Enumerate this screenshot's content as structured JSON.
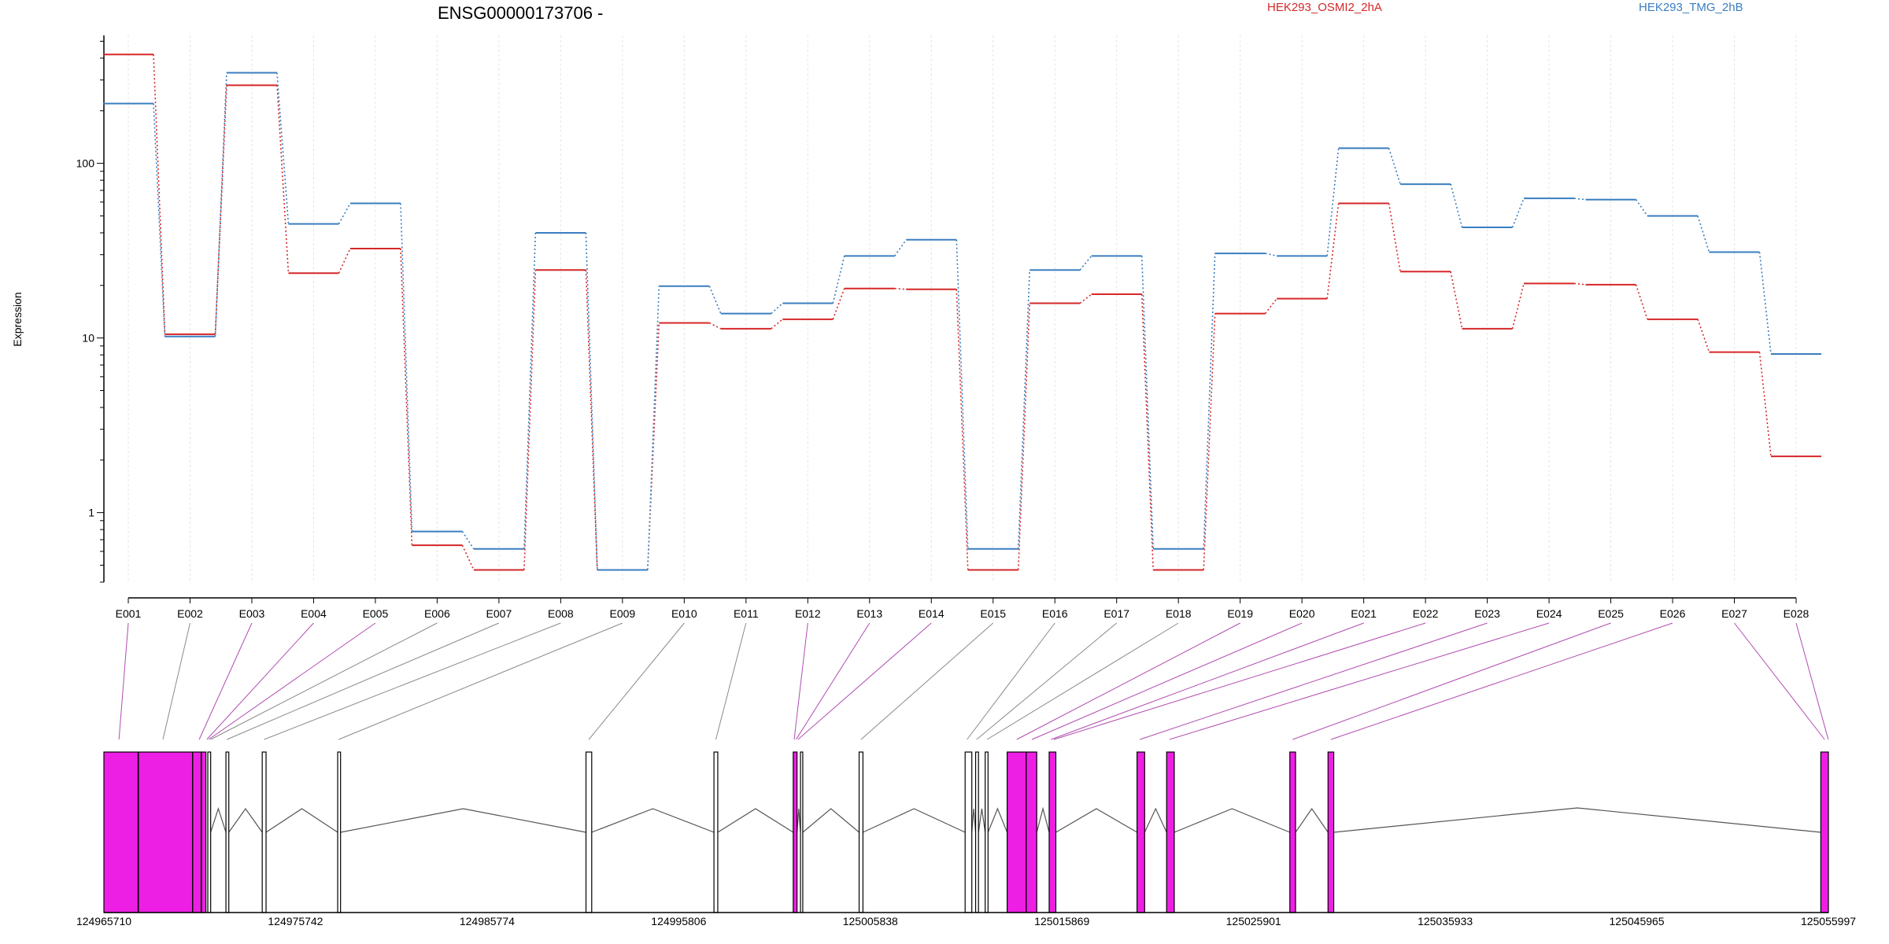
{
  "chart_data": {
    "type": "line",
    "title": "ENSG00000173706 -",
    "ylabel": "Expression",
    "yscale": "log",
    "ylim": [
      0.4,
      540
    ],
    "yticks": [
      1,
      10,
      100
    ],
    "ytick_labels": [
      "1",
      "10",
      "100"
    ],
    "categories": [
      "E001",
      "E002",
      "E003",
      "E004",
      "E005",
      "E006",
      "E007",
      "E008",
      "E009",
      "E010",
      "E011",
      "E012",
      "E013",
      "E014",
      "E015",
      "E016",
      "E017",
      "E018",
      "E019",
      "E020",
      "E021",
      "E022",
      "E023",
      "E024",
      "E025",
      "E026",
      "E027",
      "E028"
    ],
    "series": [
      {
        "name": "HEK293_OSMI2_2hA",
        "color": "#d62728",
        "values": [
          420,
          10.5,
          280,
          23.5,
          32.5,
          0.65,
          0.47,
          24.5,
          0.47,
          12.2,
          11.3,
          12.8,
          19.2,
          19,
          0.47,
          15.8,
          17.8,
          0.47,
          13.8,
          16.8,
          59,
          24,
          11.3,
          20.5,
          20.2,
          12.8,
          8.3,
          2.1
        ]
      },
      {
        "name": "HEK293_TMG_2hB",
        "color": "#3a7ebf",
        "values": [
          220,
          10.2,
          330,
          45,
          59,
          0.78,
          0.62,
          40,
          0.47,
          19.8,
          13.8,
          15.8,
          29.5,
          36.5,
          0.62,
          24.5,
          29.5,
          0.62,
          30.5,
          29.5,
          122,
          76,
          43,
          63,
          62,
          50,
          31,
          8.1
        ]
      }
    ],
    "gene_model": {
      "coordinate_labels": [
        "124965710",
        "124975742",
        "124985774",
        "124995806",
        "125005838",
        "125015869",
        "125025901",
        "125035933",
        "125045965",
        "125055997"
      ],
      "highlight_color": "#ee1fe4"
    }
  }
}
